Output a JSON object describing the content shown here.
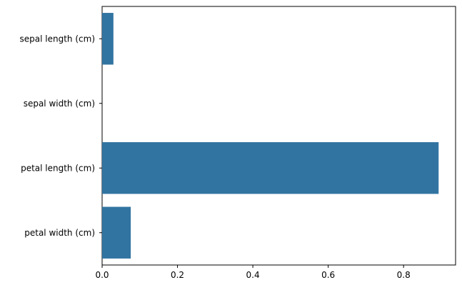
{
  "chart_data": {
    "type": "barh",
    "categories": [
      "sepal length (cm)",
      "sepal width (cm)",
      "petal length (cm)",
      "petal width (cm)"
    ],
    "values": [
      0.03,
      0.0,
      0.893,
      0.076
    ],
    "color": "#3274a1",
    "xlim": [
      0,
      0.938
    ],
    "xticks": [
      {
        "value": 0,
        "label": "0.0"
      },
      0.2,
      0.4,
      0.6,
      0.8
    ],
    "grid": false
  }
}
